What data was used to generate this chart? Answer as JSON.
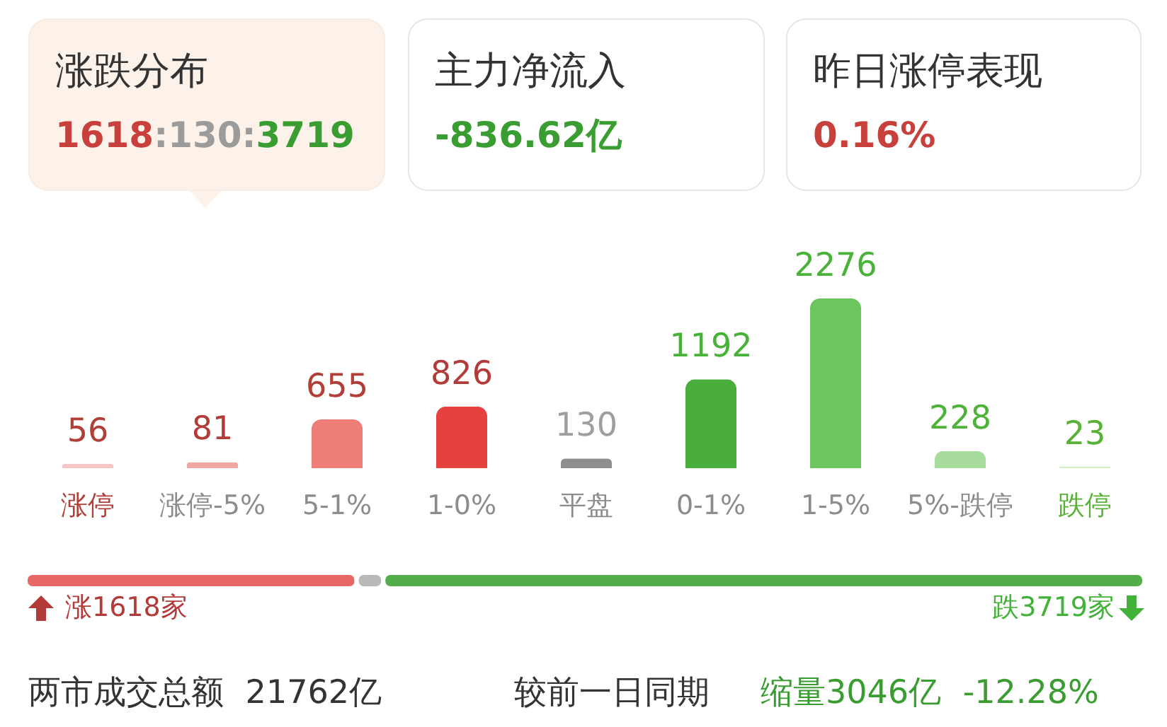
{
  "chart_data": [
    {
      "type": "other",
      "annotations": [
        "涨跌分布",
        "1618:130:3719",
        "主力净流入",
        "-836.62亿",
        "昨日涨停表现",
        "0.16%"
      ]
    },
    {
      "type": "bar",
      "categories": [
        "涨停",
        "涨停-5%",
        "5-1%",
        "1-0%",
        "平盘",
        "0-1%",
        "1-5%",
        "5%-跌停",
        "跌停"
      ],
      "values": [
        56,
        81,
        655,
        826,
        130,
        1192,
        2276,
        228,
        23
      ],
      "colors": [
        "#f4c7c5",
        "#f0a6a3",
        "#ee7c77",
        "#e5413f",
        "#8e8e8e",
        "#4aae3c",
        "#6dc560",
        "#a8dc9d",
        "#d3ecca"
      ],
      "data_labels": true
    },
    {
      "type": "bar",
      "orientation": "horizontal",
      "stacked": true,
      "categories": [
        null
      ],
      "series": [
        {
          "color": "#e86764",
          "values": [
            1618
          ],
          "value_labels": [
            "涨1618家"
          ]
        },
        {
          "color": "#b9b9b9",
          "values": [
            130
          ],
          "value_labels": [
            null
          ]
        },
        {
          "color": "#52ad4a",
          "values": [
            3719
          ],
          "value_labels": [
            "跌3719家"
          ]
        }
      ],
      "annotations": [
        "两市成交总额 21762亿",
        "较前一日同期",
        "缩量3046亿 -12.28%"
      ]
    }
  ]
}
